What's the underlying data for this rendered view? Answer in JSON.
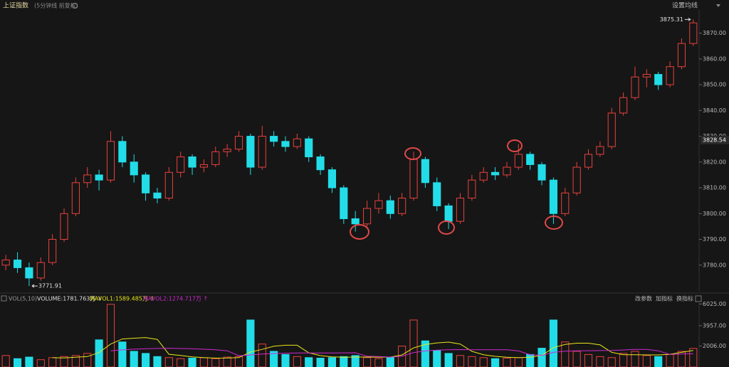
{
  "header": {
    "title": "上证指数",
    "subtitle": "(5分钟线 前复权)",
    "settings": "设置均线"
  },
  "chart_data": [
    {
      "type": "candlestick",
      "open": [
        3780,
        3782,
        3779,
        3775,
        3781,
        3790,
        3800,
        3812,
        3815,
        3813,
        3828,
        3820,
        3815,
        3808,
        3806,
        3816,
        3822,
        3818,
        3819,
        3824,
        3825,
        3830,
        3818,
        3830,
        3828,
        3826,
        3829,
        3822,
        3817,
        3810,
        3798,
        3796,
        3802,
        3805,
        3800,
        3806,
        3821,
        3812,
        3803,
        3797,
        3806,
        3813,
        3816,
        3815,
        3818,
        3823,
        3819,
        3813,
        3800,
        3808,
        3818,
        3823,
        3826,
        3839,
        3845,
        3853,
        3854,
        3850,
        3857,
        3866
      ],
      "high": [
        3784,
        3785,
        3781,
        3783,
        3792,
        3802,
        3814,
        3818,
        3817,
        3832,
        3830,
        3823,
        3816,
        3810,
        3818,
        3824,
        3823,
        3821,
        3826,
        3827,
        3832,
        3831,
        3834,
        3832,
        3830,
        3831,
        3830,
        3823,
        3818,
        3811,
        3801,
        3805,
        3808,
        3807,
        3808,
        3824,
        3822,
        3814,
        3804,
        3808,
        3815,
        3818,
        3818,
        3820,
        3827,
        3824,
        3820,
        3814,
        3810,
        3820,
        3825,
        3828,
        3841,
        3847,
        3857,
        3856,
        3855,
        3859,
        3868,
        3875.31
      ],
      "low": [
        3778,
        3777,
        3771.91,
        3774,
        3780,
        3789,
        3799,
        3810,
        3809,
        3812,
        3818,
        3812,
        3805,
        3804,
        3805,
        3814,
        3815,
        3816,
        3818,
        3822,
        3824,
        3815,
        3817,
        3826,
        3824,
        3825,
        3820,
        3815,
        3808,
        3796,
        3793,
        3795,
        3800,
        3798,
        3799,
        3805,
        3810,
        3801,
        3794,
        3796,
        3805,
        3812,
        3813,
        3814,
        3817,
        3817,
        3811,
        3796,
        3799,
        3807,
        3817,
        3822,
        3825,
        3838,
        3844,
        3849,
        3848,
        3849,
        3856,
        3865
      ],
      "close": [
        3782,
        3779,
        3775,
        3781,
        3790,
        3800,
        3812,
        3815,
        3813,
        3828,
        3820,
        3815,
        3808,
        3806,
        3816,
        3822,
        3818,
        3819,
        3824,
        3825,
        3830,
        3818,
        3830,
        3828,
        3826,
        3829,
        3822,
        3817,
        3810,
        3798,
        3796,
        3802,
        3805,
        3800,
        3806,
        3821,
        3812,
        3803,
        3797,
        3806,
        3813,
        3816,
        3815,
        3818,
        3823,
        3819,
        3813,
        3800,
        3808,
        3818,
        3823,
        3826,
        3839,
        3845,
        3853,
        3854,
        3850,
        3857,
        3866,
        3874
      ],
      "up_color": "#e8413e",
      "down_color": "#22dde8",
      "ylim": [
        3770,
        3879
      ],
      "yticks": [
        {
          "value": 3780,
          "label": "3780.00"
        },
        {
          "value": 3790,
          "label": "3790.00"
        },
        {
          "value": 3800,
          "label": "3800.00"
        },
        {
          "value": 3810,
          "label": "3810.00"
        },
        {
          "value": 3820,
          "label": "3820.00"
        },
        {
          "value": 3830,
          "label": "3830.00"
        },
        {
          "value": 3840,
          "label": "3840.00"
        },
        {
          "value": 3850,
          "label": "3850.00"
        },
        {
          "value": 3860,
          "label": "3860.00"
        },
        {
          "value": 3870,
          "label": "3870.00"
        }
      ],
      "price_marker": 3828.54
    },
    {
      "type": "bar",
      "title": "VOL(5,10)",
      "annotations": [
        "VOLUME:1781.763万 ↓",
        "MAVOL1:1589.485万 ↑",
        "MAVOL2:1274.717万 ↑"
      ],
      "values": [
        1100,
        800,
        950,
        700,
        900,
        1000,
        1100,
        1300,
        2600,
        6000,
        2400,
        1500,
        1300,
        1000,
        900,
        800,
        850,
        900,
        800,
        950,
        1000,
        4500,
        2200,
        1500,
        1200,
        1000,
        900,
        850,
        900,
        1000,
        1100,
        900,
        800,
        950,
        2000,
        4500,
        2500,
        1600,
        1300,
        1100,
        1000,
        900,
        800,
        850,
        900,
        1200,
        1800,
        4500,
        2400,
        1500,
        1200,
        1000,
        900,
        1300,
        1500,
        1100,
        1000,
        1200,
        1500,
        1781.763
      ],
      "series": [
        {
          "color": "#e6e61a",
          "values": [
            null,
            null,
            null,
            null,
            890,
            870,
            930,
            1000,
            1380,
            2200,
            2680,
            2760,
            2820,
            2640,
            1220,
            1100,
            970,
            890,
            850,
            860,
            900,
            1430,
            1690,
            1990,
            2080,
            2080,
            1360,
            1090,
            970,
            930,
            950,
            950,
            930,
            950,
            1150,
            1830,
            2150,
            2310,
            2380,
            2200,
            1500,
            1180,
            1020,
            930,
            890,
            930,
            1110,
            1850,
            2160,
            2280,
            2280,
            2120,
            1400,
            1180,
            1180,
            1160,
            1160,
            1220,
            1400,
            1589.485
          ]
        },
        {
          "color": "#d02ad0",
          "values": [
            null,
            null,
            null,
            null,
            null,
            null,
            null,
            null,
            null,
            1545,
            1640,
            1710,
            1745,
            1775,
            1795,
            1770,
            1745,
            1705,
            1655,
            1550,
            1080,
            1150,
            1240,
            1290,
            1320,
            1340,
            1345,
            1340,
            1350,
            1355,
            1365,
            1030,
            1000,
            945,
            1030,
            1380,
            1540,
            1615,
            1655,
            1665,
            1655,
            1655,
            1655,
            1645,
            1540,
            1180,
            1110,
            1400,
            1510,
            1550,
            1560,
            1570,
            1580,
            1630,
            1690,
            1680,
            1550,
            1200,
            1240,
            1274.717
          ]
        }
      ],
      "ylim": [
        0,
        6400
      ],
      "yticks": [
        {
          "value": 2006,
          "label": "2006.00"
        },
        {
          "value": 3957,
          "label": "3957.00"
        },
        {
          "value": 6025,
          "label": "6025.00"
        }
      ],
      "buttons": [
        "改参数",
        "加指标",
        "换指标"
      ]
    }
  ]
}
